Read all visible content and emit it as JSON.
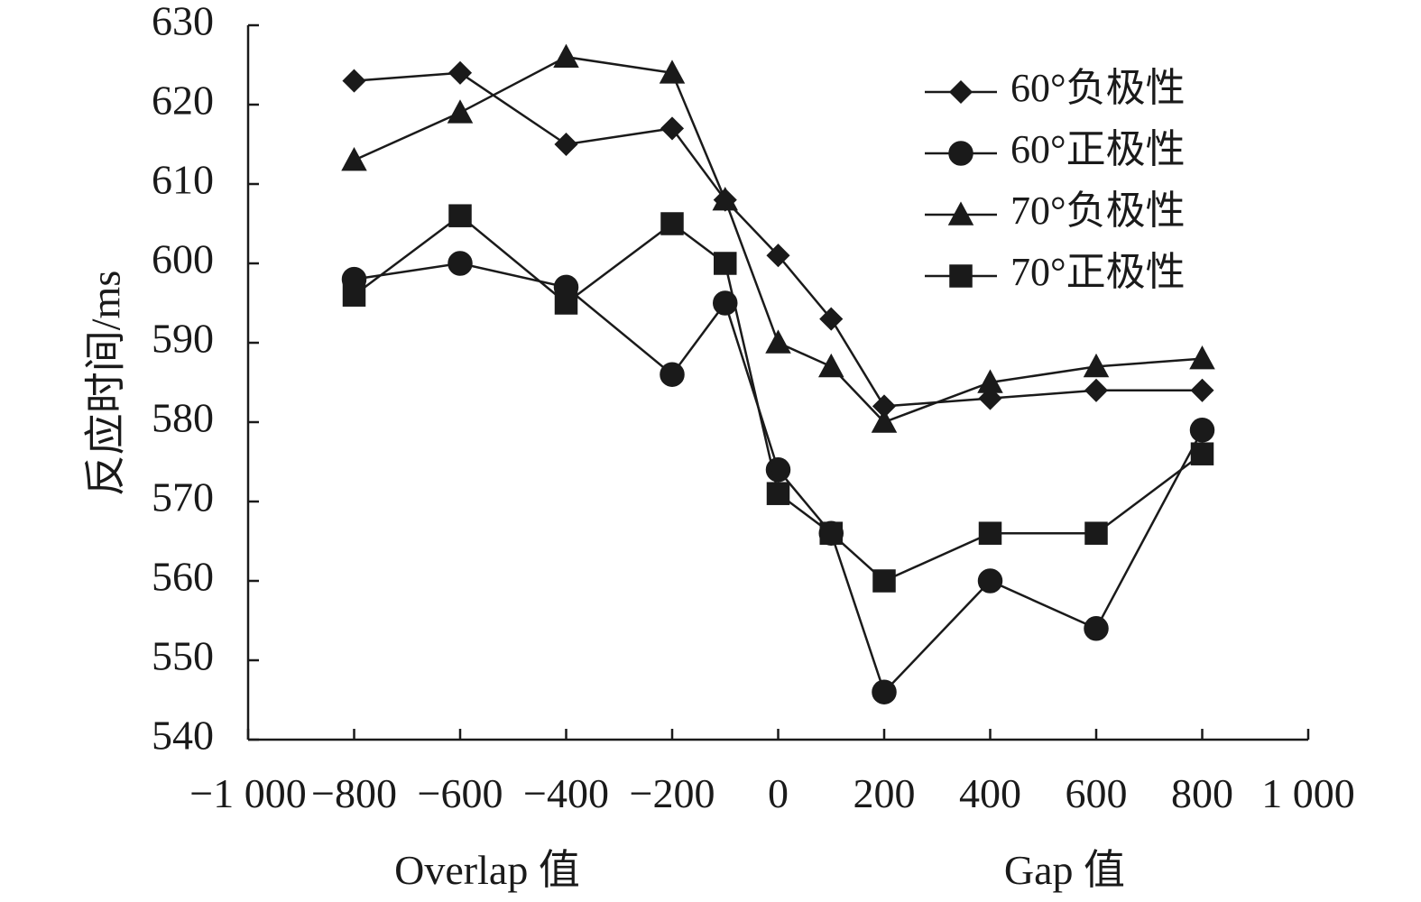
{
  "chart_data": {
    "type": "line",
    "title": "",
    "ylabel": "反应时间/ms",
    "xlabel_overlap": "Overlap 值",
    "xlabel_gap": "Gap 值",
    "xlim": [
      -1000,
      1000
    ],
    "ylim": [
      540,
      630
    ],
    "x_ticks": [
      -1000,
      -800,
      -600,
      -400,
      -200,
      0,
      200,
      400,
      600,
      800,
      1000
    ],
    "x_tick_labels": [
      "−1 000",
      "−800",
      "−600",
      "−400",
      "−200",
      "0",
      "200",
      "400",
      "600",
      "800",
      "1 000"
    ],
    "y_ticks": [
      540,
      550,
      560,
      570,
      580,
      590,
      600,
      610,
      620,
      630
    ],
    "y_tick_labels": [
      "540",
      "550",
      "560",
      "570",
      "580",
      "590",
      "600",
      "610",
      "620",
      "630"
    ],
    "grid": false,
    "legend_position": "top-right",
    "x": [
      -800,
      -600,
      -400,
      -200,
      -100,
      0,
      100,
      200,
      400,
      600,
      800
    ],
    "series": [
      {
        "name": "60°负极性",
        "marker": "diamond",
        "values": [
          623,
          624,
          615,
          617,
          608,
          601,
          593,
          582,
          583,
          584,
          584
        ]
      },
      {
        "name": "60°正极性",
        "marker": "circle",
        "values": [
          598,
          600,
          597,
          586,
          595,
          574,
          566,
          546,
          560,
          554,
          579
        ]
      },
      {
        "name": "70°负极性",
        "marker": "triangle",
        "values": [
          613,
          619,
          626,
          624,
          608,
          590,
          587,
          580,
          585,
          587,
          588
        ]
      },
      {
        "name": "70°正极性",
        "marker": "square",
        "values": [
          596,
          606,
          595,
          605,
          600,
          571,
          566,
          560,
          566,
          566,
          576
        ]
      }
    ],
    "line_color": "#1a1a1a"
  }
}
